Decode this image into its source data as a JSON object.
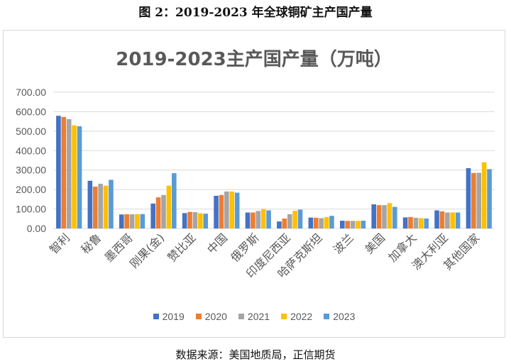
{
  "figure_title": "图 2：2019-2023 年全球铜矿主产国产量",
  "source": "数据来源：美国地质局，正信期货",
  "chart_data": {
    "type": "bar",
    "title": "2019-2023主产国产量（万吨）",
    "categories": [
      "智利",
      "秘鲁",
      "墨西哥",
      "刚果(金)",
      "赞比亚",
      "中国",
      "俄罗斯",
      "印度尼西亚",
      "哈萨克斯坦",
      "波兰",
      "美国",
      "加拿大",
      "澳大利亚",
      "其他国家"
    ],
    "series": [
      {
        "name": "2019",
        "color": "#4472C4",
        "values": [
          579,
          245,
          72,
          128,
          79,
          168,
          82,
          36,
          56,
          40,
          124,
          57,
          93,
          310
        ]
      },
      {
        "name": "2020",
        "color": "#ED7D31",
        "values": [
          573,
          215,
          73,
          160,
          85,
          172,
          82,
          51,
          55,
          39,
          120,
          59,
          88,
          285
        ]
      },
      {
        "name": "2021",
        "color": "#A5A5A5",
        "values": [
          562,
          230,
          73,
          172,
          84,
          190,
          90,
          73,
          53,
          39,
          120,
          55,
          82,
          286
        ]
      },
      {
        "name": "2022",
        "color": "#FFC000",
        "values": [
          530,
          220,
          74,
          220,
          78,
          190,
          100,
          91,
          58,
          39,
          130,
          53,
          82,
          340
        ]
      },
      {
        "name": "2023",
        "color": "#5B9BD5",
        "values": [
          525,
          250,
          74,
          284,
          76,
          184,
          93,
          97,
          65,
          40,
          111,
          51,
          82,
          305
        ]
      }
    ],
    "ylim": [
      0,
      700
    ],
    "yticks": [
      "0.00",
      "100.00",
      "200.00",
      "300.00",
      "400.00",
      "500.00",
      "600.00",
      "700.00"
    ],
    "grid": true,
    "legend_position": "bottom"
  }
}
